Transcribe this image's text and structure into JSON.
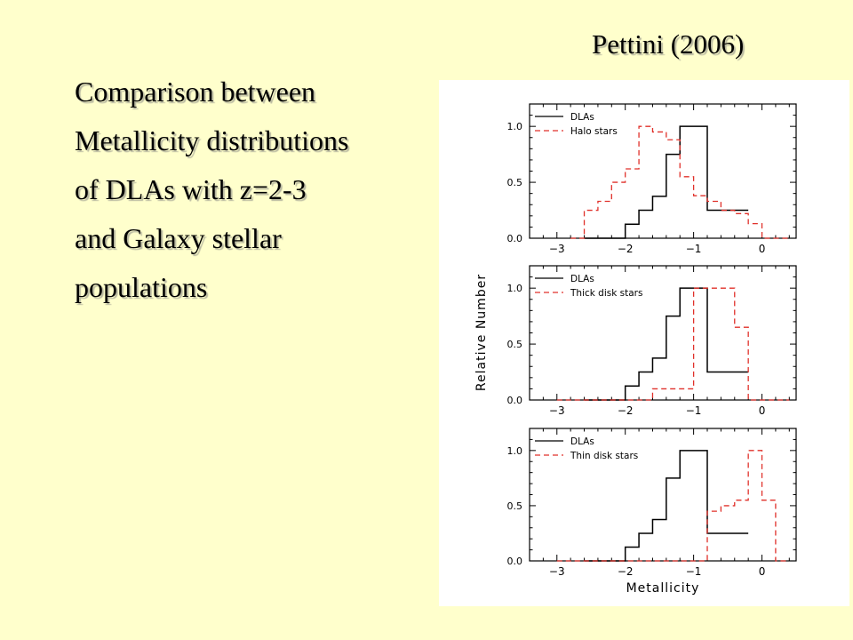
{
  "slide": {
    "citation": "Pettini (2006)",
    "lines": [
      "Comparison between",
      "Metallicity distributions",
      "of DLAs with z=2-3",
      "and Galaxy stellar",
      "populations"
    ]
  },
  "chart_data": [
    {
      "type": "histogram-step",
      "xlabel": "",
      "ylabel": "",
      "xlim": [
        -3.4,
        0.5
      ],
      "ylim": [
        0,
        1.2
      ],
      "xticks": [
        "-3",
        "-2",
        "-1",
        "0"
      ],
      "yticks": [
        "0.0",
        "0.5",
        "1.0"
      ],
      "legend_position": "top-left",
      "series": [
        {
          "name": "DLAs",
          "style": "solid",
          "color": "#000000",
          "x": [
            -2.6,
            -2.4,
            -2.2,
            -2.0,
            -1.8,
            -1.6,
            -1.4,
            -1.2,
            -1.0,
            -0.8,
            -0.6,
            -0.4,
            -0.2
          ],
          "values": [
            0,
            0,
            0,
            0.125,
            0.25,
            0.375,
            0.75,
            1.0,
            1.0,
            0.25,
            0.25,
            0.25
          ]
        },
        {
          "name": "Halo stars",
          "style": "dashed",
          "color": "#e0302a",
          "x": [
            -2.8,
            -2.6,
            -2.4,
            -2.2,
            -2.0,
            -1.8,
            -1.6,
            -1.4,
            -1.2,
            -1.0,
            -0.8,
            -0.6,
            -0.4,
            -0.2,
            0.0,
            0.2,
            0.4
          ],
          "values": [
            0,
            0.25,
            0.33,
            0.5,
            0.62,
            1.0,
            0.95,
            0.88,
            0.55,
            0.38,
            0.33,
            0.25,
            0.22,
            0.13,
            0,
            0
          ]
        }
      ]
    },
    {
      "type": "histogram-step",
      "xlabel": "",
      "ylabel": "Relative Number",
      "xlim": [
        -3.4,
        0.5
      ],
      "ylim": [
        0,
        1.2
      ],
      "xticks": [
        "-3",
        "-2",
        "-1",
        "0"
      ],
      "yticks": [
        "0.0",
        "0.5",
        "1.0"
      ],
      "legend_position": "top-left",
      "series": [
        {
          "name": "DLAs",
          "style": "solid",
          "color": "#000000",
          "x": [
            -2.6,
            -2.4,
            -2.2,
            -2.0,
            -1.8,
            -1.6,
            -1.4,
            -1.2,
            -1.0,
            -0.8,
            -0.6,
            -0.4,
            -0.2
          ],
          "values": [
            0,
            0,
            0,
            0.125,
            0.25,
            0.375,
            0.75,
            1.0,
            1.0,
            0.25,
            0.25,
            0.25
          ]
        },
        {
          "name": "Thick disk stars",
          "style": "dashed",
          "color": "#e0302a",
          "x": [
            -3.0,
            -2.8,
            -2.6,
            -2.4,
            -2.2,
            -2.0,
            -1.8,
            -1.6,
            -1.4,
            -1.2,
            -1.0,
            -0.8,
            -0.6,
            -0.4,
            -0.2,
            0.0,
            0.2,
            0.4
          ],
          "values": [
            0,
            0,
            0,
            0,
            0,
            0,
            0,
            0.1,
            0.1,
            0.1,
            1.0,
            1.0,
            1.0,
            0.65,
            0,
            0,
            0
          ]
        }
      ]
    },
    {
      "type": "histogram-step",
      "xlabel": "Metallicity",
      "ylabel": "",
      "xlim": [
        -3.4,
        0.5
      ],
      "ylim": [
        0,
        1.2
      ],
      "xticks": [
        "-3",
        "-2",
        "-1",
        "0"
      ],
      "yticks": [
        "0.0",
        "0.5",
        "1.0"
      ],
      "legend_position": "top-left",
      "series": [
        {
          "name": "DLAs",
          "style": "solid",
          "color": "#000000",
          "x": [
            -2.6,
            -2.4,
            -2.2,
            -2.0,
            -1.8,
            -1.6,
            -1.4,
            -1.2,
            -1.0,
            -0.8,
            -0.6,
            -0.4,
            -0.2
          ],
          "values": [
            0,
            0,
            0,
            0.125,
            0.25,
            0.375,
            0.75,
            1.0,
            1.0,
            0.25,
            0.25,
            0.25
          ]
        },
        {
          "name": "Thin disk stars",
          "style": "dashed",
          "color": "#e0302a",
          "x": [
            -3.0,
            -2.8,
            -2.6,
            -2.4,
            -2.2,
            -2.0,
            -1.8,
            -1.6,
            -1.4,
            -1.2,
            -1.0,
            -0.8,
            -0.6,
            -0.4,
            -0.2,
            0.0,
            0.2,
            0.4
          ],
          "values": [
            0,
            0,
            0,
            0,
            0,
            0,
            0,
            0,
            0,
            0,
            0,
            0.45,
            0.5,
            0.55,
            1.0,
            0.55,
            0,
            0
          ]
        }
      ]
    }
  ]
}
